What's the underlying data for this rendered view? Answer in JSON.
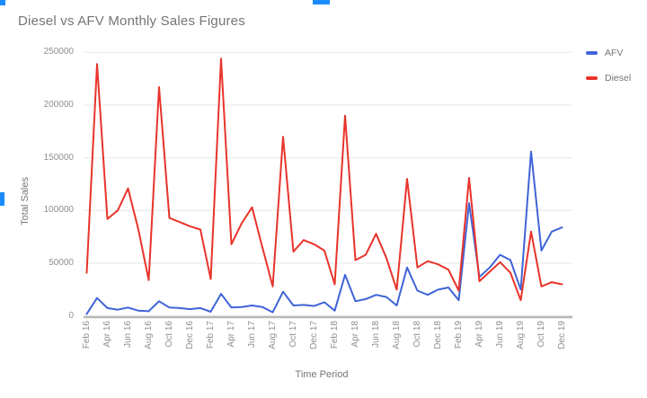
{
  "selection": {
    "handle_color": "#1a8cff"
  },
  "chart_data": {
    "type": "line",
    "title": "Diesel vs AFV Monthly Sales Figures",
    "xlabel": "Time Period",
    "ylabel": "Total Sales",
    "ylim": [
      0,
      250000
    ],
    "yticks": [
      0,
      50000,
      100000,
      150000,
      200000,
      250000
    ],
    "grid": true,
    "legend_position": "top-right",
    "x_tick_every": 2,
    "x": [
      "Feb 16",
      "Mar 16",
      "Apr 16",
      "May 16",
      "Jun 16",
      "Jul 16",
      "Aug 16",
      "Sep 16",
      "Oct 16",
      "Nov 16",
      "Dec 16",
      "Jan 17",
      "Feb 17",
      "Mar 17",
      "Apr 17",
      "May 17",
      "Jun 17",
      "Jul 17",
      "Aug 17",
      "Sep 17",
      "Oct 17",
      "Nov 17",
      "Dec 17",
      "Jan 18",
      "Feb 18",
      "Mar 18",
      "Apr 18",
      "May 18",
      "Jun 18",
      "Jul 18",
      "Aug 18",
      "Sep 18",
      "Oct 18",
      "Nov 18",
      "Dec 18",
      "Jan 19",
      "Feb 19",
      "Mar 19",
      "Apr 19",
      "May 19",
      "Jun 19",
      "Jul 19",
      "Aug 19",
      "Sep 19",
      "Oct 19",
      "Nov 19",
      "Dec 19"
    ],
    "series": [
      {
        "name": "AFV",
        "color": "#3f64d8",
        "values": [
          2000,
          17000,
          7500,
          6000,
          8000,
          5000,
          4500,
          14000,
          8000,
          7500,
          6500,
          7500,
          4000,
          21000,
          8000,
          8500,
          10000,
          8500,
          3500,
          23000,
          10000,
          10500,
          9500,
          13000,
          5000,
          39000,
          14000,
          16000,
          20000,
          18000,
          10000,
          46000,
          24000,
          20000,
          25000,
          27000,
          15000,
          107000,
          37000,
          46000,
          58000,
          53000,
          25000,
          156000,
          62000,
          80000,
          84000
        ]
      },
      {
        "name": "Diesel",
        "color": "#e8342b",
        "values": [
          41000,
          239000,
          92000,
          100000,
          121000,
          82000,
          34000,
          217000,
          93000,
          89000,
          85000,
          82000,
          35000,
          244000,
          68000,
          88000,
          103000,
          65000,
          28000,
          170000,
          61000,
          72000,
          68000,
          62000,
          30000,
          190000,
          53000,
          58000,
          78000,
          55000,
          25000,
          130000,
          46000,
          52000,
          49000,
          44000,
          24000,
          131000,
          33000,
          42000,
          51000,
          41000,
          15000,
          80000,
          28000,
          32000,
          30000
        ]
      }
    ]
  }
}
